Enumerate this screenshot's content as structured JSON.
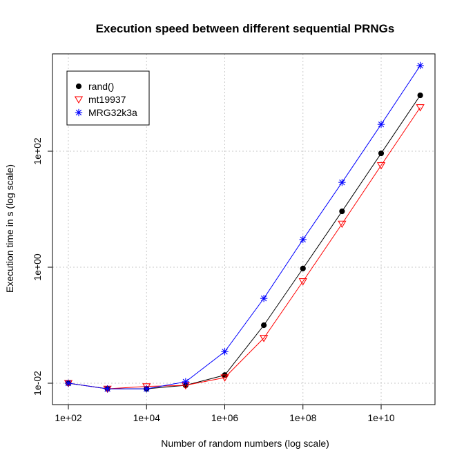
{
  "chart_data": {
    "type": "line",
    "title": "Execution speed between different sequential PRNGs",
    "xlabel": "Number of random numbers (log scale)",
    "ylabel": "Execution time in s (log scale)",
    "x_scale": "log10",
    "y_scale": "log10",
    "grid": true,
    "legend_position": "top-left",
    "x": [
      100,
      1000,
      10000,
      100000,
      1000000,
      10000000,
      100000000,
      1000000000,
      10000000000,
      100000000000
    ],
    "x_ticks": [
      {
        "value": 100,
        "label": "1e+02"
      },
      {
        "value": 10000,
        "label": "1e+04"
      },
      {
        "value": 1000000,
        "label": "1e+06"
      },
      {
        "value": 100000000,
        "label": "1e+08"
      },
      {
        "value": 10000000000,
        "label": "1e+10"
      }
    ],
    "y_ticks": [
      {
        "value": 0.01,
        "label": "1e-02"
      },
      {
        "value": 1,
        "label": "1e+00"
      },
      {
        "value": 100,
        "label": "1e+02"
      }
    ],
    "series": [
      {
        "name": "rand()",
        "color": "#000000",
        "marker": "filled-circle",
        "values": [
          0.01,
          0.008,
          0.008,
          0.0092,
          0.0138,
          0.1,
          0.95,
          9.2,
          92,
          920
        ]
      },
      {
        "name": "mt19937",
        "color": "#ff0000",
        "marker": "triangle-down",
        "values": [
          0.01,
          0.008,
          0.0088,
          0.0092,
          0.0125,
          0.06,
          0.57,
          5.6,
          57,
          570
        ]
      },
      {
        "name": "MRG32k3a",
        "color": "#0000ff",
        "marker": "asterisk",
        "values": [
          0.01,
          0.008,
          0.008,
          0.0106,
          0.035,
          0.29,
          3.0,
          29,
          290,
          3000
        ]
      }
    ]
  }
}
